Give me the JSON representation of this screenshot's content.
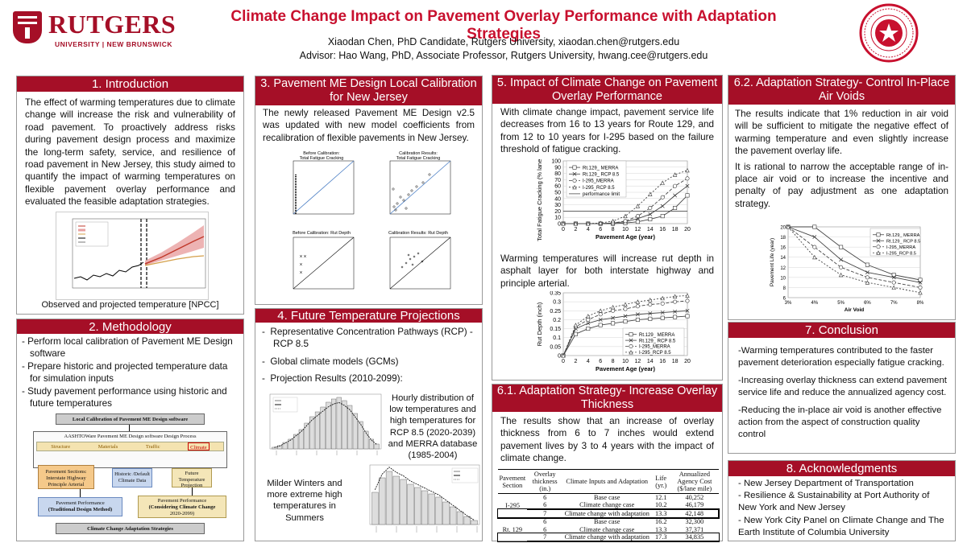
{
  "header": {
    "logo_name": "RUTGERS",
    "logo_sub": "UNIVERSITY | NEW BRUNSWICK",
    "title": "Climate Change Impact on Pavement Overlay Performance with Adaptation Strategies",
    "author": "Xiaodan Chen, PhD Candidate, Rutgers University, xiaodan.chen@rutgers.edu",
    "advisor": "Advisor: Hao Wang, PhD, Associate Professor, Rutgers University, hwang.cee@rutgers.edu",
    "brand_color": "#a50f27"
  },
  "intro": {
    "title": "1. Introduction",
    "body": "The effect of warming temperatures due to climate change will increase the risk and vulnerability of road pavement. To proactively address risks during pavement design process and maximize the long-term safety, service, and resilience of road pavement in New Jersey, this study aimed to quantify the impact of warming temperatures on flexible pavement overlay performance and evaluated the feasible adaptation strategies.",
    "figure_caption": "Observed and projected temperature  [NPCC]"
  },
  "method": {
    "title": "2. Methodology",
    "items": [
      "- Perform local calibration of Pavement ME Design software",
      "- Prepare historic and projected temperature data for simulation inputs",
      "- Study pavement performance using historic and future temperatures"
    ],
    "flow": {
      "top": "Local Calibration of Pavement ME Design software",
      "aashto": "AASHTOWare Pavement ME Design software Design Process",
      "inputs": [
        "Structure",
        "Materials",
        "Traffic",
        "Climate"
      ],
      "box1": "Pavement Sections: Interstate Highway Principle Arterial",
      "box2": "Historic /Default Climate Data",
      "box3": "Future Temperature Projection",
      "perf1_a": "Pavement Performance",
      "perf1_b": "(Traditional Design Method)",
      "perf2_a": "Pavement Performance",
      "perf2_b": "(Considering Climate Change",
      "perf2_c": "2020-2099)",
      "bottom": "Climate Change Adaptation Strategies"
    }
  },
  "calib": {
    "title": "3. Pavement ME Design Local Calibration for New Jersey",
    "body": "The newly released Pavement ME Design v2.5 was updated with new model coefficients from recalibration of flexible pavements in New Jersey.",
    "plots": [
      {
        "t1": "Before Calibration:",
        "t2": "Total Fatigue Cracking"
      },
      {
        "t1": "Calibration Results:",
        "t2": "Total Fatigue Cracking"
      },
      {
        "t1": "Before Calibration: Rut Depth",
        "t2": ""
      },
      {
        "t1": "Calibration Results: Rut Depth",
        "t2": ""
      }
    ]
  },
  "future": {
    "title": "4. Future Temperature Projections",
    "items": [
      "Representative Concentration Pathways (RCP) - RCP 8.5",
      "Global climate models (GCMs)",
      "Projection Results (2010-2099):"
    ],
    "hist_caption": "Hourly distribution of low temperatures and high temperatures for RCP 8.5 (2020-2039) and MERRA database (1985-2004)",
    "winter_caption": "Milder Winters and more extreme high temperatures in Summers"
  },
  "impact": {
    "title": "5. Impact of Climate Change on Pavement Overlay Performance",
    "body": "With climate change impact, pavement  service life decreases from 16 to 13 years for Route 129, and from 12 to 10 years for I-295 based on the failure threshold of fatigue cracking.",
    "body2": "Warming temperatures will increase rut depth in asphalt layer for both interstate highway and principle arterial."
  },
  "adapt1": {
    "title": "6.1. Adaptation Strategy- Increase Overlay Thickness",
    "body": "The results show that an increase of overlay thickness from 6 to 7 inches would extend pavement lives by 3 to 4 years with the impact of climate change.",
    "table": {
      "headers": [
        "Pavement Section",
        "Overlay thickness (in.)",
        "Climate Inputs and Adaptation",
        "Life (yr.)",
        "Annualized Agency Cost ($/lane mile)"
      ],
      "rows": [
        [
          "I-295",
          "6",
          "Base case",
          "12.1",
          "40,252"
        ],
        [
          "",
          "6",
          "Climate change case",
          "10.2",
          "46,179"
        ],
        [
          "",
          "7",
          "Climate change with adaptation",
          "13.3",
          "42,148"
        ],
        [
          "Rt. 129",
          "6",
          "Base case",
          "16.2",
          "32,300"
        ],
        [
          "",
          "6",
          "Climate change case",
          "13.3",
          "37,371"
        ],
        [
          "",
          "7",
          "Climate change with adaptation",
          "17.3",
          "34,835"
        ]
      ]
    }
  },
  "adapt2": {
    "title": "6.2. Adaptation Strategy- Control In-Place Air Voids",
    "body1": "The results indicate that 1% reduction in air void will be sufficient to mitigate the negative effect of warming temperature and even slightly increase the pavement overlay life.",
    "body2": "It is rational to narrow the acceptable range of in-place air void or to increase the incentive and penalty of pay adjustment as one adaptation strategy."
  },
  "conclusion": {
    "title": "7. Conclusion",
    "items": [
      "-Warming temperatures contributed to the faster pavement deterioration especially fatigue cracking.",
      "-Increasing overlay thickness can extend pavement service life and reduce the annualized agency cost.",
      "-Reducing the in-place air void is another effective action from the aspect of construction quality control"
    ]
  },
  "ack": {
    "title": "8. Acknowledgments",
    "items": [
      "- New Jersey Department of Transportation",
      "- Resilience & Sustainability at Port Authority of New York and New Jersey",
      "- New York City Panel on Climate Change and The Earth Institute of Columbia University"
    ]
  },
  "chart_data": [
    {
      "type": "line",
      "xlabel": "Pavement Age (year)",
      "ylabel": "Total Fatigue Cracking (% lane area)",
      "x": [
        0,
        2,
        4,
        6,
        8,
        10,
        12,
        14,
        16,
        18,
        20
      ],
      "xlim": [
        0,
        20
      ],
      "ylim": [
        0,
        100
      ],
      "yticks": [
        0,
        10,
        20,
        30,
        40,
        50,
        60,
        70,
        80,
        90,
        100
      ],
      "series": [
        {
          "name": "Rt.129_ MERRA",
          "values": [
            0,
            0,
            0,
            0,
            0,
            1,
            3,
            7,
            12,
            25,
            45
          ]
        },
        {
          "name": "Rt.129_ RCP 8.5",
          "values": [
            0,
            0,
            0,
            0,
            1,
            3,
            8,
            15,
            28,
            45,
            60
          ]
        },
        {
          "name": "I-295_MERRA",
          "values": [
            0,
            0,
            0,
            0,
            1,
            4,
            12,
            25,
            42,
            60,
            72
          ]
        },
        {
          "name": "I-295_RCP 8.5",
          "values": [
            0,
            0,
            0,
            1,
            4,
            12,
            28,
            47,
            65,
            78,
            85
          ]
        }
      ],
      "threshold": {
        "name": "performance limit",
        "value": 20
      }
    },
    {
      "type": "line",
      "xlabel": "Pavement Age (year)",
      "ylabel": "Rut Depth (inch)",
      "x": [
        0,
        2,
        4,
        6,
        8,
        10,
        12,
        14,
        16,
        18,
        20
      ],
      "xlim": [
        0,
        20
      ],
      "ylim": [
        0,
        0.35
      ],
      "yticks": [
        0,
        0.05,
        0.1,
        0.15,
        0.2,
        0.25,
        0.3,
        0.35
      ],
      "series": [
        {
          "name": "Rt.129_ MERRA",
          "values": [
            0,
            0.12,
            0.15,
            0.17,
            0.18,
            0.19,
            0.2,
            0.205,
            0.21,
            0.215,
            0.22
          ]
        },
        {
          "name": "Rt.129_ RCP 8.5",
          "values": [
            0,
            0.15,
            0.18,
            0.2,
            0.21,
            0.22,
            0.23,
            0.235,
            0.24,
            0.245,
            0.25
          ]
        },
        {
          "name": "I-295_MERRA",
          "values": [
            0,
            0.16,
            0.2,
            0.23,
            0.25,
            0.26,
            0.275,
            0.285,
            0.29,
            0.3,
            0.305
          ]
        },
        {
          "name": "I-295_RCP 8.5",
          "values": [
            0,
            0.17,
            0.22,
            0.25,
            0.27,
            0.285,
            0.3,
            0.31,
            0.32,
            0.33,
            0.335
          ]
        }
      ]
    },
    {
      "type": "line",
      "xlabel": "Air Void",
      "ylabel": "Pavement Life (year)",
      "categories": [
        "3%",
        "4%",
        "5%",
        "6%",
        "7%",
        "8%"
      ],
      "ylim": [
        6,
        20
      ],
      "yticks": [
        6,
        8,
        10,
        12,
        14,
        16,
        18,
        20
      ],
      "series": [
        {
          "name": "Rt.129_ MERRA",
          "values": [
            20,
            20,
            16,
            12.5,
            10.5,
            9.5
          ]
        },
        {
          "name": "Rt.129_ RCP 8.5",
          "values": [
            20,
            18,
            13.5,
            11,
            10,
            9
          ]
        },
        {
          "name": "I-295_MERRA",
          "values": [
            20,
            16,
            12,
            10,
            9,
            8
          ]
        },
        {
          "name": "I-295_RCP 8.5",
          "values": [
            20,
            14,
            10.5,
            9,
            8,
            7
          ]
        }
      ]
    }
  ]
}
